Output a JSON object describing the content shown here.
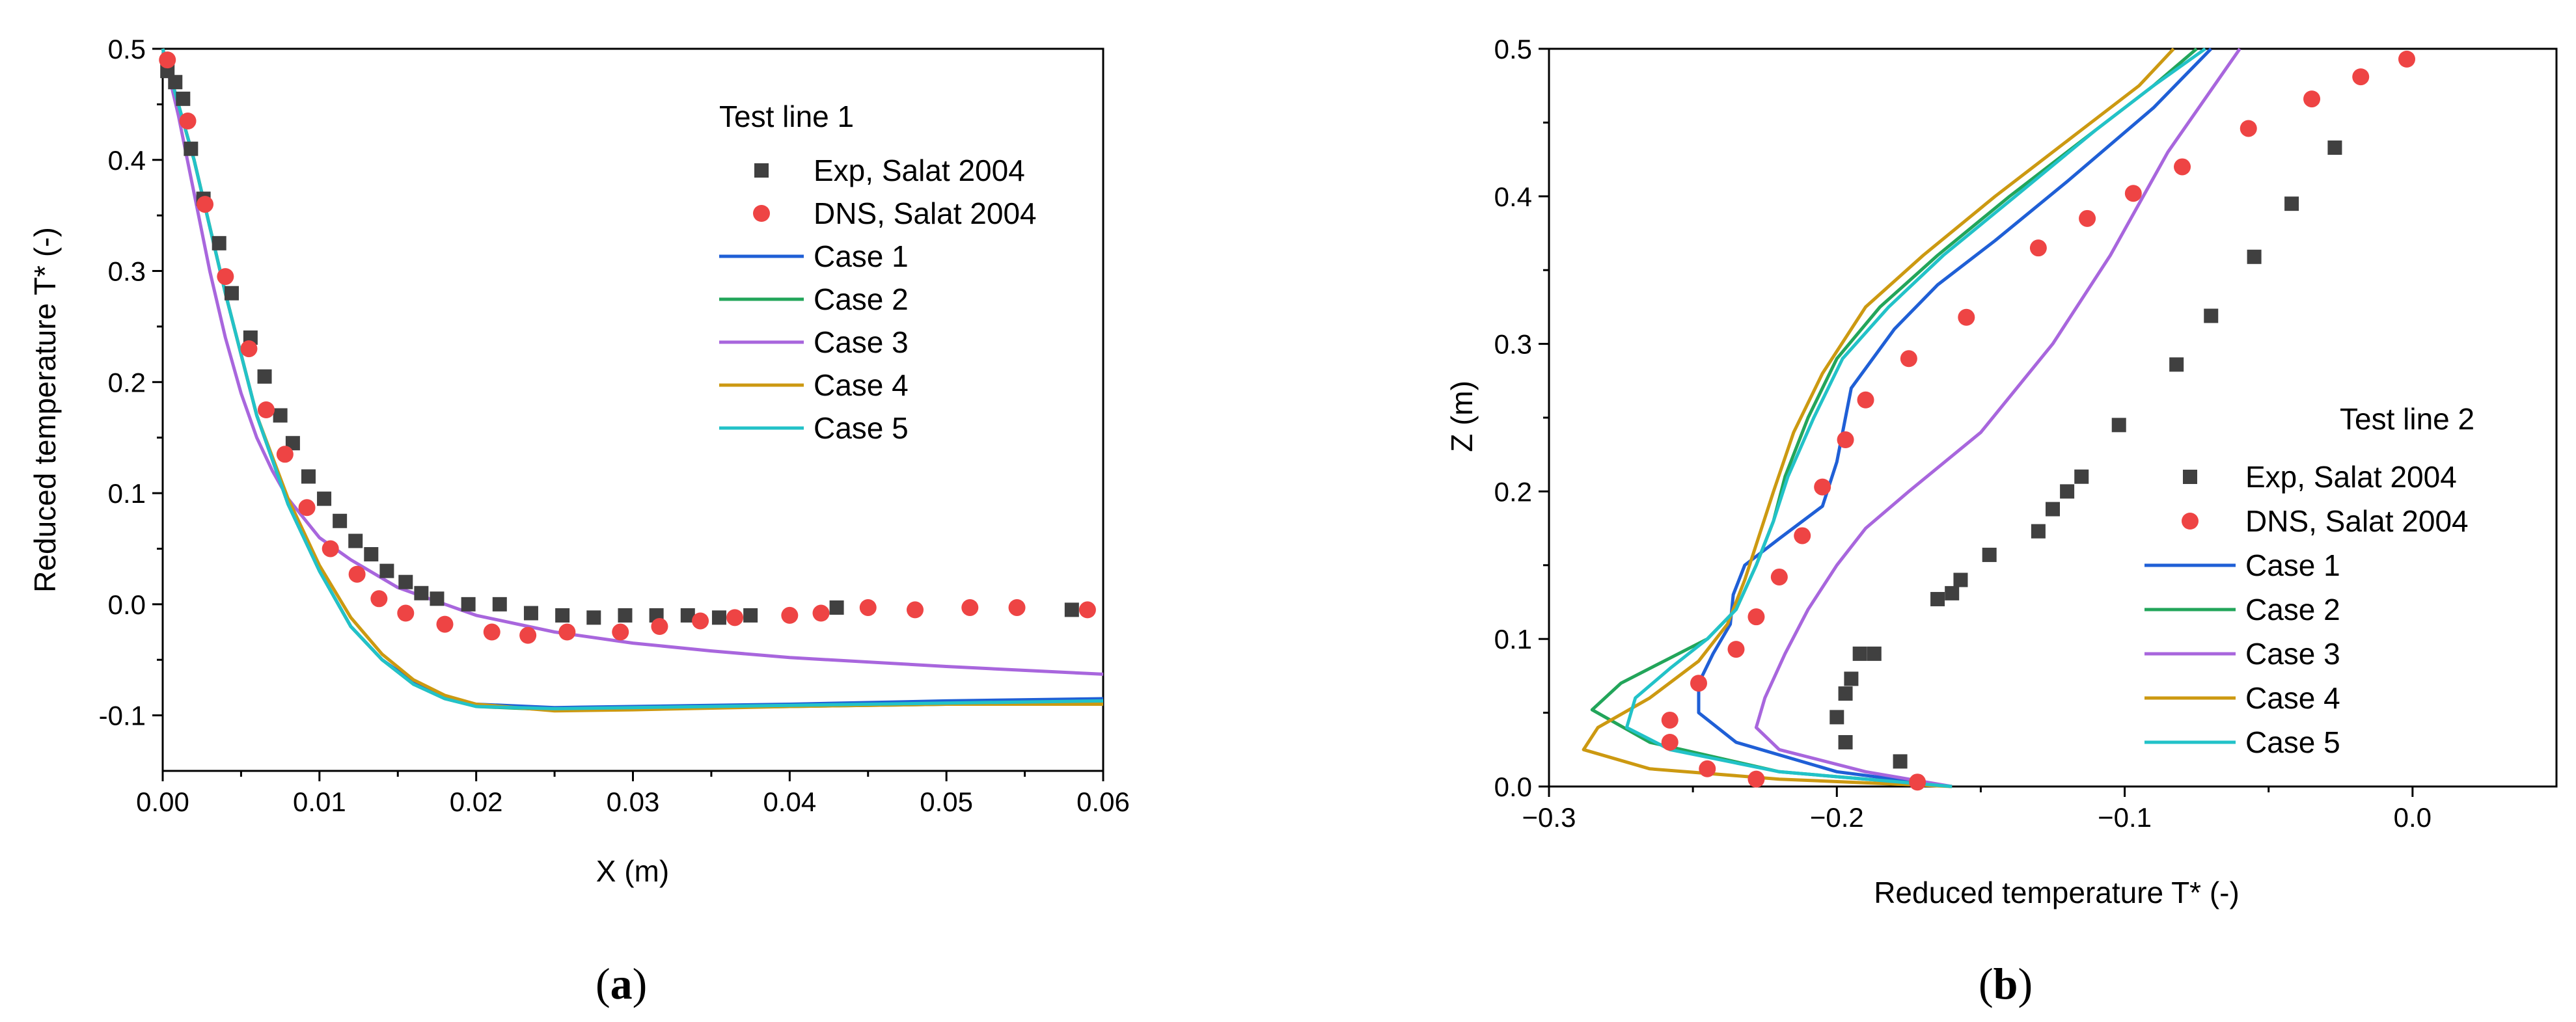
{
  "colors": {
    "exp": "#404040",
    "dns": "#ee4444",
    "case1": "#1f5fd6",
    "case2": "#22a55a",
    "case3": "#a866dd",
    "case4": "#cc9911",
    "case5": "#22c2c8"
  },
  "chart_data": [
    {
      "id": "a",
      "type": "scatter+line",
      "caption": "(a)",
      "caption_letter": "a",
      "xlabel": "X (m)",
      "ylabel": "Reduced temperature T* (-)",
      "xlim": [
        0,
        0.06
      ],
      "ylim": [
        -0.15,
        0.5
      ],
      "xticks": [
        0,
        0.01,
        0.02,
        0.03,
        0.04,
        0.05,
        0.06
      ],
      "xtick_labels": [
        "0.00",
        "0.01",
        "0.02",
        "0.03",
        "0.04",
        "0.05",
        "0.06"
      ],
      "yticks": [
        -0.1,
        0.0,
        0.1,
        0.2,
        0.3,
        0.4,
        0.5
      ],
      "ytick_labels": [
        "-0.1",
        "0.0",
        "0.1",
        "0.2",
        "0.3",
        "0.4",
        "0.5"
      ],
      "legend_title": "Test line 1",
      "legend_position": "top-right",
      "series": [
        {
          "name": "Exp, Salat 2004",
          "kind": "square",
          "color_key": "exp",
          "x": [
            0.0003,
            0.0008,
            0.0013,
            0.0018,
            0.0026,
            0.0036,
            0.0044,
            0.0056,
            0.0065,
            0.0075,
            0.0083,
            0.0093,
            0.0103,
            0.0113,
            0.0123,
            0.0133,
            0.0143,
            0.0155,
            0.0165,
            0.0175,
            0.0195,
            0.0215,
            0.0235,
            0.0255,
            0.0275,
            0.0295,
            0.0315,
            0.0335,
            0.0355,
            0.0375,
            0.043,
            0.058
          ],
          "y": [
            0.48,
            0.47,
            0.455,
            0.41,
            0.365,
            0.325,
            0.28,
            0.24,
            0.205,
            0.17,
            0.145,
            0.115,
            0.095,
            0.075,
            0.057,
            0.045,
            0.03,
            0.02,
            0.01,
            0.005,
            0.0,
            0.0,
            -0.008,
            -0.01,
            -0.012,
            -0.01,
            -0.01,
            -0.01,
            -0.012,
            -0.01,
            -0.003,
            -0.005
          ]
        },
        {
          "name": "DNS, Salat 2004",
          "kind": "circle",
          "color_key": "dns",
          "x": [
            0.0003,
            0.0016,
            0.0027,
            0.004,
            0.0055,
            0.0066,
            0.0078,
            0.0092,
            0.0107,
            0.0124,
            0.0138,
            0.0155,
            0.018,
            0.021,
            0.0233,
            0.0258,
            0.0292,
            0.0317,
            0.0343,
            0.0365,
            0.04,
            0.042,
            0.045,
            0.048,
            0.0515,
            0.0545,
            0.059
          ],
          "y": [
            0.49,
            0.435,
            0.36,
            0.295,
            0.23,
            0.175,
            0.135,
            0.087,
            0.05,
            0.027,
            0.005,
            -0.008,
            -0.018,
            -0.025,
            -0.028,
            -0.025,
            -0.025,
            -0.02,
            -0.015,
            -0.012,
            -0.01,
            -0.008,
            -0.003,
            -0.005,
            -0.003,
            -0.003,
            -0.005
          ]
        },
        {
          "name": "Case 1",
          "kind": "line",
          "color_key": "case1",
          "x": [
            0,
            0.002,
            0.004,
            0.006,
            0.008,
            0.01,
            0.012,
            0.014,
            0.016,
            0.018,
            0.02,
            0.025,
            0.03,
            0.04,
            0.05,
            0.06
          ],
          "y": [
            0.5,
            0.4,
            0.28,
            0.17,
            0.09,
            0.03,
            -0.02,
            -0.05,
            -0.07,
            -0.083,
            -0.09,
            -0.093,
            -0.092,
            -0.09,
            -0.087,
            -0.085
          ]
        },
        {
          "name": "Case 2",
          "kind": "line",
          "color_key": "case2",
          "x": [
            0,
            0.002,
            0.004,
            0.006,
            0.008,
            0.01,
            0.012,
            0.014,
            0.016,
            0.018,
            0.02,
            0.025,
            0.03,
            0.04,
            0.05,
            0.06
          ],
          "y": [
            0.5,
            0.4,
            0.28,
            0.17,
            0.09,
            0.03,
            -0.02,
            -0.05,
            -0.072,
            -0.085,
            -0.092,
            -0.095,
            -0.094,
            -0.092,
            -0.09,
            -0.088
          ]
        },
        {
          "name": "Case 3",
          "kind": "line",
          "color_key": "case3",
          "x": [
            0,
            0.001,
            0.002,
            0.003,
            0.004,
            0.005,
            0.006,
            0.007,
            0.008,
            0.01,
            0.012,
            0.015,
            0.02,
            0.025,
            0.03,
            0.035,
            0.04,
            0.05,
            0.06
          ],
          "y": [
            0.5,
            0.44,
            0.37,
            0.3,
            0.24,
            0.19,
            0.15,
            0.12,
            0.095,
            0.06,
            0.04,
            0.015,
            -0.01,
            -0.025,
            -0.035,
            -0.042,
            -0.048,
            -0.056,
            -0.063
          ]
        },
        {
          "name": "Case 4",
          "kind": "line",
          "color_key": "case4",
          "x": [
            0,
            0.002,
            0.004,
            0.006,
            0.008,
            0.01,
            0.012,
            0.014,
            0.016,
            0.018,
            0.02,
            0.025,
            0.03,
            0.04,
            0.05,
            0.06
          ],
          "y": [
            0.5,
            0.4,
            0.28,
            0.17,
            0.095,
            0.035,
            -0.012,
            -0.045,
            -0.068,
            -0.082,
            -0.09,
            -0.096,
            -0.095,
            -0.092,
            -0.09,
            -0.09
          ]
        },
        {
          "name": "Case 5",
          "kind": "line",
          "color_key": "case5",
          "x": [
            0,
            0.002,
            0.004,
            0.006,
            0.008,
            0.01,
            0.012,
            0.014,
            0.016,
            0.018,
            0.02,
            0.025,
            0.03,
            0.04,
            0.05,
            0.06
          ],
          "y": [
            0.5,
            0.4,
            0.28,
            0.17,
            0.09,
            0.03,
            -0.02,
            -0.05,
            -0.072,
            -0.085,
            -0.092,
            -0.094,
            -0.093,
            -0.091,
            -0.089,
            -0.087
          ]
        }
      ]
    },
    {
      "id": "b",
      "type": "scatter+line",
      "caption": "(b)",
      "caption_letter": "b",
      "xlabel": "Reduced temperature T* (-)",
      "ylabel": "Z (m)",
      "xlim": [
        -0.3,
        0.05
      ],
      "ylim": [
        0,
        0.5
      ],
      "xticks": [
        -0.3,
        -0.2,
        -0.1,
        0.0
      ],
      "xtick_labels": [
        "−0.3",
        "−0.2",
        "−0.1",
        "0.0"
      ],
      "yticks": [
        0,
        0.1,
        0.2,
        0.3,
        0.4,
        0.5
      ],
      "ytick_labels": [
        "0.0",
        "0.1",
        "0.2",
        "0.3",
        "0.4",
        "0.5"
      ],
      "legend_title": "Test line 2",
      "legend_position": "bottom-right",
      "series": [
        {
          "name": "Exp, Salat 2004",
          "kind": "square",
          "color_key": "exp",
          "x": [
            -0.178,
            -0.197,
            -0.2,
            -0.197,
            -0.195,
            -0.192,
            -0.187,
            -0.165,
            -0.16,
            -0.157,
            -0.147,
            -0.13,
            -0.125,
            -0.12,
            -0.115,
            -0.102,
            -0.082,
            -0.07,
            -0.055,
            -0.042,
            -0.027
          ],
          "y": [
            0.017,
            0.03,
            0.047,
            0.063,
            0.073,
            0.09,
            0.09,
            0.127,
            0.131,
            0.14,
            0.157,
            0.173,
            0.188,
            0.2,
            0.21,
            0.245,
            0.286,
            0.319,
            0.359,
            0.395,
            0.433
          ]
        },
        {
          "name": "DNS, Salat 2004",
          "kind": "circle",
          "color_key": "dns",
          "x": [
            -0.172,
            -0.228,
            -0.245,
            -0.258,
            -0.258,
            -0.248,
            -0.235,
            -0.228,
            -0.22,
            -0.212,
            -0.205,
            -0.197,
            -0.19,
            -0.175,
            -0.155,
            -0.13,
            -0.113,
            -0.097,
            -0.08,
            -0.057,
            -0.035,
            -0.018,
            -0.002
          ],
          "y": [
            0.003,
            0.005,
            0.012,
            0.03,
            0.045,
            0.07,
            0.093,
            0.115,
            0.142,
            0.17,
            0.203,
            0.235,
            0.262,
            0.29,
            0.318,
            0.365,
            0.385,
            0.402,
            0.42,
            0.446,
            0.466,
            0.481,
            0.493
          ]
        },
        {
          "name": "Case 1",
          "kind": "line",
          "color_key": "case1",
          "x": [
            -0.16,
            -0.2,
            -0.235,
            -0.248,
            -0.248,
            -0.243,
            -0.237,
            -0.236,
            -0.232,
            -0.22,
            -0.205,
            -0.2,
            -0.195,
            -0.18,
            -0.165,
            -0.145,
            -0.12,
            -0.09,
            -0.07
          ],
          "y": [
            0,
            0.01,
            0.03,
            0.05,
            0.07,
            0.09,
            0.11,
            0.13,
            0.15,
            0.168,
            0.19,
            0.22,
            0.27,
            0.31,
            0.34,
            0.37,
            0.41,
            0.46,
            0.5
          ]
        },
        {
          "name": "Case 2",
          "kind": "line",
          "color_key": "case2",
          "x": [
            -0.16,
            -0.22,
            -0.265,
            -0.285,
            -0.275,
            -0.26,
            -0.245,
            -0.235,
            -0.228,
            -0.222,
            -0.218,
            -0.21,
            -0.2,
            -0.185,
            -0.165,
            -0.14,
            -0.11,
            -0.09,
            -0.075
          ],
          "y": [
            0,
            0.01,
            0.03,
            0.052,
            0.07,
            0.085,
            0.1,
            0.12,
            0.15,
            0.18,
            0.21,
            0.25,
            0.29,
            0.325,
            0.36,
            0.4,
            0.445,
            0.475,
            0.5
          ]
        },
        {
          "name": "Case 3",
          "kind": "line",
          "color_key": "case3",
          "x": [
            -0.16,
            -0.19,
            -0.22,
            -0.228,
            -0.225,
            -0.218,
            -0.21,
            -0.2,
            -0.19,
            -0.175,
            -0.15,
            -0.125,
            -0.105,
            -0.085,
            -0.06
          ],
          "y": [
            0,
            0.01,
            0.025,
            0.04,
            0.06,
            0.09,
            0.12,
            0.15,
            0.175,
            0.2,
            0.24,
            0.3,
            0.36,
            0.43,
            0.5
          ]
        },
        {
          "name": "Case 4",
          "kind": "line",
          "color_key": "case4",
          "x": [
            -0.16,
            -0.22,
            -0.265,
            -0.288,
            -0.283,
            -0.265,
            -0.248,
            -0.238,
            -0.232,
            -0.227,
            -0.222,
            -0.215,
            -0.205,
            -0.19,
            -0.17,
            -0.145,
            -0.115,
            -0.095,
            -0.083
          ],
          "y": [
            0,
            0.005,
            0.012,
            0.025,
            0.04,
            0.06,
            0.085,
            0.11,
            0.14,
            0.17,
            0.2,
            0.24,
            0.28,
            0.325,
            0.36,
            0.4,
            0.445,
            0.475,
            0.5
          ]
        },
        {
          "name": "Case 5",
          "kind": "line",
          "color_key": "case5",
          "x": [
            -0.16,
            -0.22,
            -0.258,
            -0.273,
            -0.27,
            -0.258,
            -0.245,
            -0.235,
            -0.228,
            -0.222,
            -0.217,
            -0.208,
            -0.198,
            -0.182,
            -0.163,
            -0.138,
            -0.11,
            -0.09,
            -0.072
          ],
          "y": [
            0,
            0.01,
            0.025,
            0.04,
            0.06,
            0.08,
            0.1,
            0.12,
            0.15,
            0.18,
            0.21,
            0.25,
            0.29,
            0.325,
            0.36,
            0.4,
            0.445,
            0.475,
            0.5
          ]
        }
      ]
    }
  ]
}
